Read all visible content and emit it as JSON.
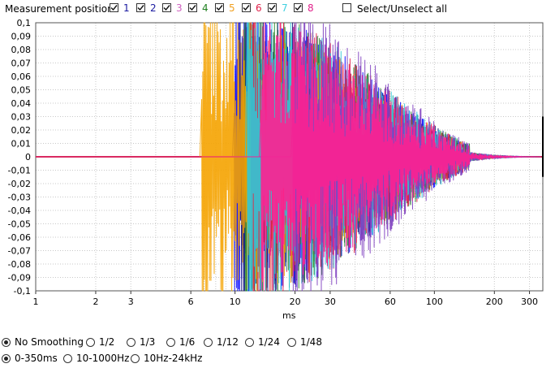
{
  "header": {
    "label": "Measurement position:",
    "positions": [
      {
        "num": "1",
        "color": "#1a1aa0",
        "checked": true
      },
      {
        "num": "2",
        "color": "#1a1aa0",
        "checked": true
      },
      {
        "num": "3",
        "color": "#d060c0",
        "checked": true
      },
      {
        "num": "4",
        "color": "#208020",
        "checked": true
      },
      {
        "num": "5",
        "color": "#f0a020",
        "checked": true
      },
      {
        "num": "6",
        "color": "#e0204a",
        "checked": true
      },
      {
        "num": "7",
        "color": "#40d0e0",
        "checked": true
      },
      {
        "num": "8",
        "color": "#e0208a",
        "checked": true
      }
    ],
    "select_all_label": "Select/Unselect all",
    "select_all_checked": false
  },
  "chart_data": {
    "type": "line",
    "xscale": "log",
    "xlabel": "ms",
    "ylabel": "",
    "xlim": [
      1,
      350
    ],
    "ylim": [
      -0.1,
      0.1
    ],
    "xticks": [
      1,
      2,
      3,
      6,
      10,
      20,
      30,
      60,
      100,
      200,
      300
    ],
    "xtick_labels": [
      "1",
      "2",
      "3",
      "6",
      "10",
      "20",
      "30",
      "60",
      "100",
      "200",
      "300"
    ],
    "ytick_labels": [
      "0,1",
      "0,09",
      "0,08",
      "0,07",
      "0,06",
      "0,05",
      "0,04",
      "0,03",
      "0,02",
      "0,01",
      "0",
      "-0,01",
      "-0,02",
      "-0,03",
      "-0,04",
      "-0,05",
      "-0,06",
      "-0,07",
      "-0,08",
      "-0,09",
      "-0,1"
    ],
    "grid": true,
    "series": [
      {
        "onset_ms": 9.9,
        "peak": 0.1,
        "color": "#0000ff"
      },
      {
        "onset_ms": 10.6,
        "peak": 0.1,
        "color": "#1a1a80"
      },
      {
        "onset_ms": 11.2,
        "peak": 0.1,
        "color": "#2a8a2a"
      },
      {
        "onset_ms": 6.8,
        "peak": 0.1,
        "color": "#f5a300"
      },
      {
        "onset_ms": 12.0,
        "peak": 0.1,
        "color": "#e0204a"
      },
      {
        "onset_ms": 11.5,
        "peak": 0.1,
        "color": "#30c8d8"
      },
      {
        "onset_ms": 19.5,
        "peak": 0.1,
        "color": "#8040c0"
      },
      {
        "onset_ms": 13.5,
        "peak": 0.09,
        "color": "#ff2090"
      }
    ]
  },
  "smoothing": {
    "options": [
      "No Smoothing",
      "1/2",
      "1/3",
      "1/6",
      "1/12",
      "1/24",
      "1/48"
    ],
    "selected": 0
  },
  "range": {
    "options": [
      "0-350ms",
      "10-1000Hz",
      "10Hz-24kHz"
    ],
    "selected": 0
  }
}
